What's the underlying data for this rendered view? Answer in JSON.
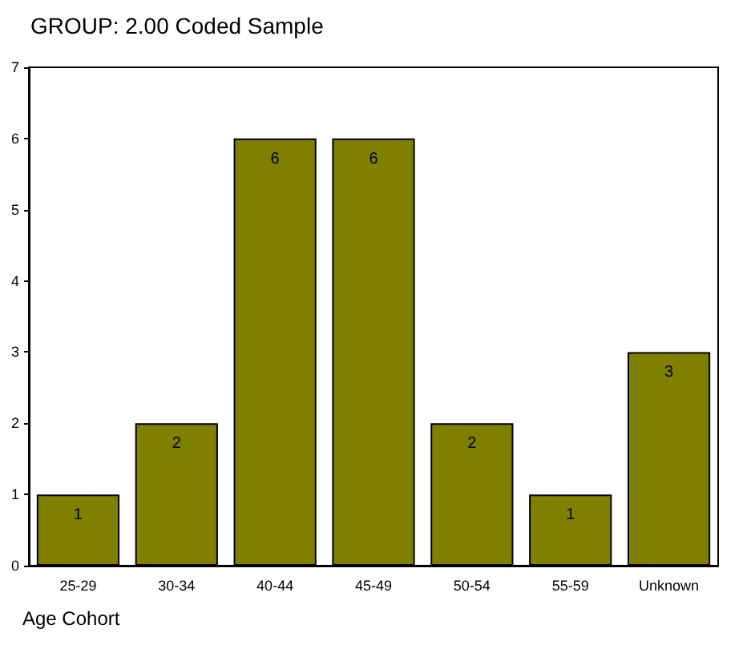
{
  "chart_data": {
    "type": "bar",
    "title": "GROUP: 2.00 Coded Sample",
    "xlabel": "Age Cohort",
    "categories": [
      "25-29",
      "30-34",
      "40-44",
      "45-49",
      "50-54",
      "55-59",
      "Unknown"
    ],
    "values": [
      1,
      2,
      6,
      6,
      2,
      1,
      3
    ],
    "color": "#808000",
    "ylim": [
      0,
      7
    ],
    "yticks": [
      0,
      1,
      2,
      3,
      4,
      5,
      6,
      7
    ],
    "grid": false,
    "data_labels": true
  }
}
